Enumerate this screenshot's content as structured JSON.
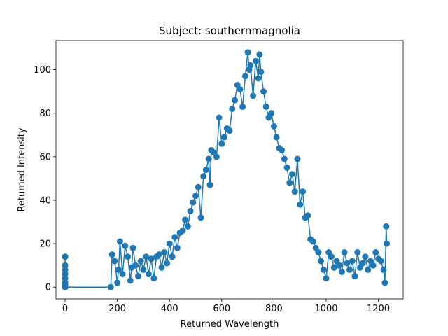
{
  "chart_data": {
    "type": "scatter",
    "connected": true,
    "title": "Subject: southernmagnolia",
    "xlabel": "Returned Wavelength",
    "ylabel": "Returned Intensity",
    "xlim": [
      -35,
      1295
    ],
    "ylim": [
      -5.4,
      113.4
    ],
    "xticks": [
      0,
      200,
      400,
      600,
      800,
      1000,
      1200
    ],
    "yticks": [
      0,
      20,
      40,
      60,
      80,
      100
    ],
    "grid": false,
    "legend": "none",
    "marker_color": "#1f77b4",
    "series": [
      {
        "x": [
          0,
          0,
          0,
          0,
          0,
          0,
          0,
          0,
          0,
          175,
          180,
          190,
          200,
          205,
          210,
          220,
          230,
          240,
          250,
          255,
          260,
          270,
          280,
          290,
          300,
          310,
          320,
          330,
          340,
          350,
          360,
          370,
          380,
          390,
          400,
          410,
          420,
          430,
          440,
          450,
          460,
          470,
          480,
          490,
          500,
          510,
          520,
          530,
          540,
          550,
          555,
          560,
          570,
          580,
          590,
          600,
          610,
          620,
          630,
          640,
          650,
          660,
          670,
          680,
          690,
          700,
          705,
          710,
          720,
          730,
          740,
          745,
          750,
          760,
          770,
          780,
          790,
          800,
          810,
          820,
          830,
          840,
          850,
          860,
          870,
          880,
          890,
          900,
          910,
          920,
          930,
          940,
          950,
          960,
          970,
          980,
          990,
          1000,
          1010,
          1020,
          1030,
          1040,
          1050,
          1060,
          1070,
          1080,
          1090,
          1100,
          1110,
          1120,
          1130,
          1140,
          1150,
          1160,
          1170,
          1180,
          1190,
          1200,
          1210,
          1220,
          1225,
          1230,
          1232
        ],
        "y": [
          6,
          14,
          10,
          8,
          4,
          2,
          0,
          1,
          0,
          0,
          15,
          12,
          2,
          8,
          21,
          6,
          19,
          14,
          3,
          9,
          18,
          10,
          5,
          12,
          8,
          14,
          6,
          13,
          4,
          14,
          15,
          9,
          16,
          11,
          20,
          14,
          23,
          18,
          25,
          26,
          31,
          28,
          35,
          39,
          42,
          46,
          32,
          51,
          54,
          59,
          47,
          63,
          62,
          60,
          78,
          66,
          69,
          73,
          72,
          82,
          86,
          93,
          91,
          83,
          97,
          108,
          100,
          102,
          88,
          104,
          96,
          107,
          99,
          90,
          83,
          78,
          80,
          74,
          69,
          64,
          63,
          59,
          55,
          48,
          52,
          44,
          59,
          38,
          44,
          32,
          33,
          22,
          21,
          18,
          16,
          12,
          8,
          4,
          16,
          14,
          9,
          12,
          10,
          7,
          16,
          11,
          8,
          12,
          5,
          16,
          9,
          11,
          14,
          8,
          12,
          10,
          16,
          13,
          12,
          8,
          2,
          28,
          20
        ]
      }
    ]
  }
}
